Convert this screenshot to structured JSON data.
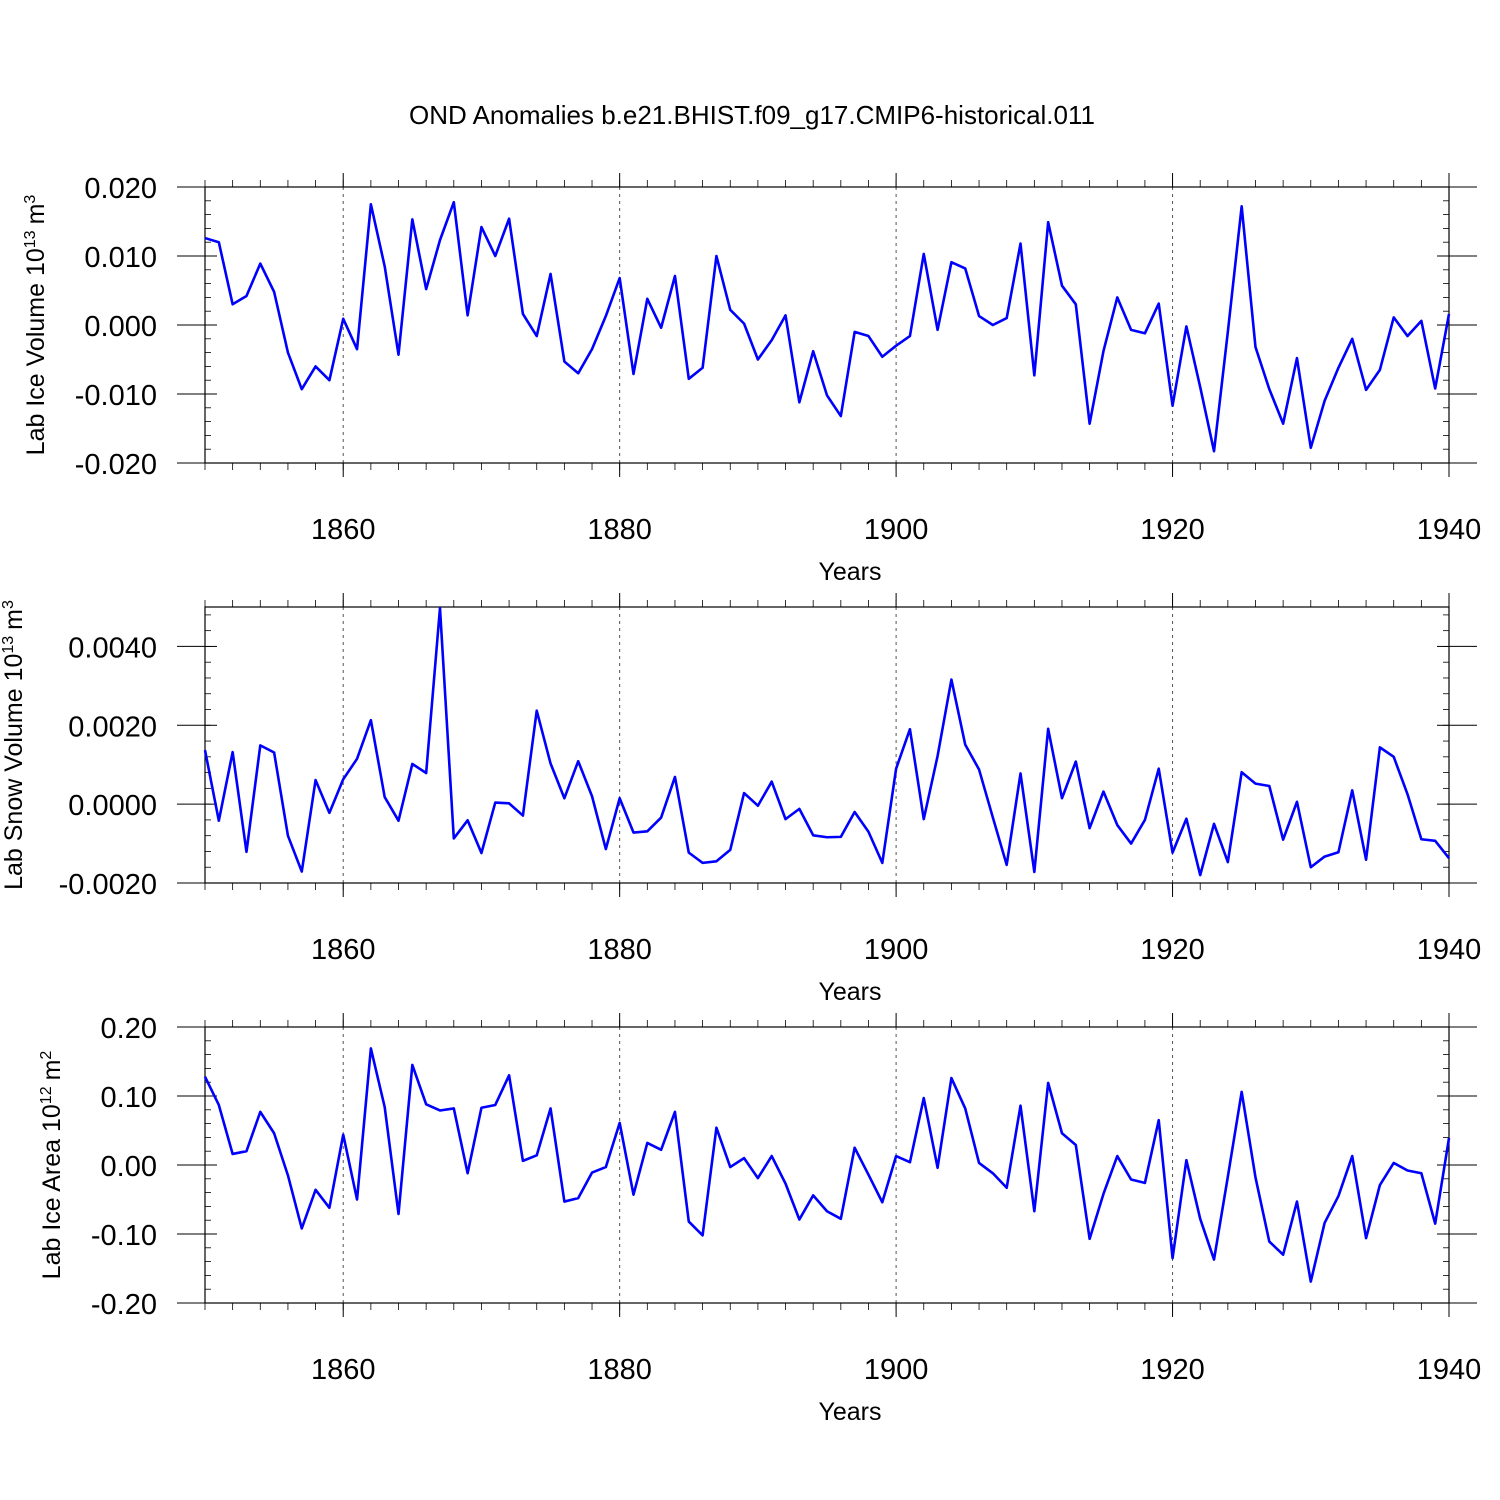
{
  "title": "OND Anomalies b.e21.BHIST.f09_g17.CMIP6-historical.011",
  "colors": {
    "line": "#0000ff",
    "axis": "#000000",
    "grid": "#555555"
  },
  "chart_data": [
    {
      "type": "line",
      "ylabel": "Lab Ice Volume 10",
      "ylabel_exp": "13",
      "ylabel_unit": "m",
      "ylabel_unit_exp": "3",
      "xlabel": "Years",
      "xlim": [
        1850,
        1940
      ],
      "ylim": [
        -0.02,
        0.02
      ],
      "yticks": [
        -0.02,
        -0.01,
        0.0,
        0.01,
        0.02
      ],
      "ytick_labels": [
        "-0.020",
        "-0.010",
        "0.000",
        "0.010",
        "0.020"
      ],
      "xticks": [
        1860,
        1880,
        1900,
        1920,
        1940
      ],
      "xtick_labels": [
        "1860",
        "1880",
        "1900",
        "1920",
        "1940"
      ],
      "grid": "vertical dashed at major x ticks",
      "series": [
        {
          "name": "Lab Ice Volume",
          "x_start": 1850,
          "values": [
            0.0126,
            0.012,
            0.003,
            0.0042,
            0.0089,
            0.0048,
            -0.004,
            -0.0093,
            -0.006,
            -0.008,
            0.0009,
            -0.0035,
            0.0175,
            0.0085,
            -0.0043,
            0.0153,
            0.0052,
            0.0123,
            0.0178,
            0.0014,
            0.0142,
            0.01,
            0.0154,
            0.0016,
            -0.0016,
            0.0074,
            -0.0053,
            -0.007,
            -0.0035,
            0.0013,
            0.0068,
            -0.0071,
            0.0038,
            -0.0004,
            0.0071,
            -0.0078,
            -0.0062,
            0.01,
            0.0022,
            0.0002,
            -0.005,
            -0.0022,
            0.0014,
            -0.0112,
            -0.0038,
            -0.0102,
            -0.0132,
            -0.001,
            -0.0016,
            -0.0046,
            -0.003,
            -0.0016,
            0.0103,
            -0.0007,
            0.0091,
            0.0082,
            0.0013,
            0.0,
            0.001,
            0.0118,
            -0.0073,
            0.0149,
            0.0057,
            0.003,
            -0.0143,
            -0.0038,
            0.004,
            -0.0007,
            -0.0012,
            0.0031,
            -0.0117,
            -0.0002,
            -0.009,
            -0.0183,
            -0.001,
            0.0172,
            -0.0032,
            -0.0093,
            -0.0143,
            -0.0048,
            -0.0178,
            -0.011,
            -0.0062,
            -0.002,
            -0.0094,
            -0.0065,
            0.0011,
            -0.0016,
            0.0006,
            -0.0092,
            0.0016
          ]
        }
      ]
    },
    {
      "type": "line",
      "ylabel": "Lab Snow Volume 10",
      "ylabel_exp": "13",
      "ylabel_unit": "m",
      "ylabel_unit_exp": "3",
      "xlabel": "Years",
      "xlim": [
        1850,
        1940
      ],
      "ylim": [
        -0.002,
        0.005
      ],
      "yticks": [
        -0.002,
        0.0,
        0.002,
        0.004
      ],
      "ytick_labels": [
        "-0.0020",
        "0.0000",
        "0.0020",
        "0.0040"
      ],
      "xticks": [
        1860,
        1880,
        1900,
        1920,
        1940
      ],
      "xtick_labels": [
        "1860",
        "1880",
        "1900",
        "1920",
        "1940"
      ],
      "grid": "vertical dashed at major x ticks",
      "series": [
        {
          "name": "Lab Snow Volume",
          "x_start": 1850,
          "values": [
            0.00137,
            -0.00042,
            0.00132,
            -0.00121,
            0.00149,
            0.00131,
            -0.0008,
            -0.00171,
            0.00061,
            -0.00022,
            0.00063,
            0.00115,
            0.00213,
            0.00018,
            -0.00042,
            0.00102,
            0.00079,
            0.00497,
            -0.00087,
            -0.00041,
            -0.00124,
            4e-05,
            2e-05,
            -0.00029,
            0.00237,
            0.00103,
            0.00015,
            0.00109,
            0.0002,
            -0.00114,
            0.00015,
            -0.00072,
            -0.00069,
            -0.00034,
            0.00069,
            -0.00123,
            -0.00149,
            -0.00145,
            -0.00116,
            0.00028,
            -4e-05,
            0.00057,
            -0.00038,
            -0.00012,
            -0.00079,
            -0.00084,
            -0.00083,
            -0.0002,
            -0.0007,
            -0.00149,
            0.0009,
            0.0019,
            -0.00038,
            0.00122,
            0.00316,
            0.00151,
            0.00088,
            -0.00034,
            -0.00154,
            0.00078,
            -0.00172,
            0.00191,
            0.00015,
            0.00108,
            -0.00061,
            0.00032,
            -0.00053,
            -0.001,
            -0.0004,
            0.0009,
            -0.00123,
            -0.00037,
            -0.0018,
            -0.0005,
            -0.00147,
            0.00081,
            0.00052,
            0.00046,
            -0.0009,
            6e-05,
            -0.0016,
            -0.00133,
            -0.00122,
            0.00035,
            -0.00141,
            0.00144,
            0.0012,
            0.00025,
            -0.00089,
            -0.00093,
            -0.00137
          ]
        }
      ]
    },
    {
      "type": "line",
      "ylabel": "Lab Ice Area 10",
      "ylabel_exp": "12",
      "ylabel_unit": "m",
      "ylabel_unit_exp": "2",
      "xlabel": "Years",
      "xlim": [
        1850,
        1940
      ],
      "ylim": [
        -0.2,
        0.2
      ],
      "yticks": [
        -0.2,
        -0.1,
        0.0,
        0.1,
        0.2
      ],
      "ytick_labels": [
        "-0.20",
        "-0.10",
        "0.00",
        "0.10",
        "0.20"
      ],
      "xticks": [
        1860,
        1880,
        1900,
        1920,
        1940
      ],
      "xtick_labels": [
        "1860",
        "1880",
        "1900",
        "1920",
        "1940"
      ],
      "grid": "vertical dashed at major x ticks",
      "series": [
        {
          "name": "Lab Ice Area",
          "x_start": 1850,
          "values": [
            0.128,
            0.087,
            0.016,
            0.02,
            0.077,
            0.046,
            -0.015,
            -0.092,
            -0.036,
            -0.062,
            0.044,
            -0.05,
            0.169,
            0.084,
            -0.071,
            0.145,
            0.088,
            0.079,
            0.082,
            -0.012,
            0.083,
            0.087,
            0.13,
            0.006,
            0.014,
            0.082,
            -0.053,
            -0.048,
            -0.011,
            -0.003,
            0.061,
            -0.043,
            0.032,
            0.022,
            0.077,
            -0.082,
            -0.102,
            0.054,
            -0.003,
            0.01,
            -0.019,
            0.013,
            -0.027,
            -0.079,
            -0.044,
            -0.067,
            -0.078,
            0.025,
            -0.014,
            -0.054,
            0.013,
            0.004,
            0.097,
            -0.004,
            0.126,
            0.082,
            0.003,
            -0.012,
            -0.033,
            0.086,
            -0.067,
            0.119,
            0.046,
            0.029,
            -0.107,
            -0.042,
            0.013,
            -0.021,
            -0.026,
            0.065,
            -0.135,
            0.007,
            -0.078,
            -0.137,
            -0.017,
            0.106,
            -0.018,
            -0.111,
            -0.13,
            -0.053,
            -0.169,
            -0.084,
            -0.045,
            0.013,
            -0.106,
            -0.029,
            0.003,
            -0.008,
            -0.012,
            -0.085,
            0.039
          ]
        }
      ]
    }
  ]
}
